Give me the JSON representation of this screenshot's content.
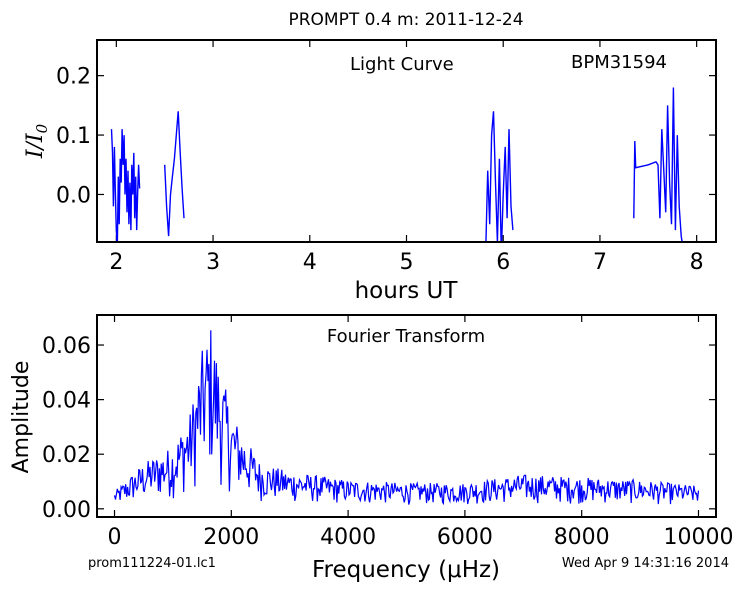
{
  "header": {
    "title": "PROMPT 0.4 m:  2011-12-24",
    "footer_left": "prom111224-01.lc1",
    "footer_right": "Wed Apr  9 14:31:16 2014"
  },
  "chart_data": [
    {
      "type": "line",
      "annotation_left": "Light Curve",
      "annotation_right": "BPM31594",
      "xlabel": "hours UT",
      "ylabel": "I/I0",
      "xlim": [
        1.8,
        8.2
      ],
      "ylim": [
        -0.08,
        0.26
      ],
      "xticks": [
        2,
        3,
        4,
        5,
        6,
        7,
        8
      ],
      "xtick_labels": [
        "2",
        "3",
        "4",
        "5",
        "6",
        "7",
        "8"
      ],
      "yticks": [
        0.0,
        0.1,
        0.2
      ],
      "ytick_labels": [
        "0.0",
        "0.1",
        "0.2"
      ],
      "line_color": "#0000ff",
      "series": [
        {
          "x": [
            1.95,
            1.96,
            1.97,
            1.98,
            1.99,
            2.0,
            2.01,
            2.02,
            2.03,
            2.04,
            2.05,
            2.06,
            2.07,
            2.08,
            2.09,
            2.1,
            2.11,
            2.12,
            2.13,
            2.14,
            2.15,
            2.16,
            2.17,
            2.18,
            2.19,
            2.2,
            2.21,
            2.22,
            2.23,
            2.24
          ],
          "y": [
            0.11,
            0.07,
            -0.02,
            0.08,
            0.0,
            -0.06,
            -0.09,
            0.03,
            -0.05,
            0.06,
            0.02,
            0.11,
            0.05,
            0.1,
            0.0,
            0.06,
            -0.03,
            0.04,
            -0.05,
            0.02,
            -0.06,
            0.05,
            0.0,
            0.07,
            -0.04,
            0.03,
            -0.06,
            0.0,
            0.05,
            0.01
          ]
        },
        {
          "x": [
            2.5,
            2.52,
            2.54,
            2.56,
            2.58,
            2.6,
            2.62,
            2.64,
            2.66,
            2.68,
            2.7
          ],
          "y": [
            0.05,
            -0.02,
            -0.07,
            0.0,
            0.03,
            0.06,
            0.1,
            0.14,
            0.07,
            0.01,
            -0.04
          ]
        },
        {
          "x": [
            5.82,
            5.84,
            5.86,
            5.88,
            5.9,
            5.92,
            5.94,
            5.96,
            5.98,
            6.0,
            6.02,
            6.04,
            6.06,
            6.08,
            6.1
          ],
          "y": [
            -0.09,
            0.04,
            -0.05,
            0.1,
            0.14,
            0.02,
            -0.08,
            0.06,
            -0.1,
            0.0,
            0.08,
            -0.04,
            0.11,
            -0.02,
            -0.06
          ]
        },
        {
          "x": [
            7.35,
            7.36,
            7.37,
            7.5,
            7.58,
            7.6,
            7.62,
            7.64,
            7.66,
            7.68,
            7.7,
            7.72,
            7.74,
            7.76,
            7.78,
            7.8,
            7.82,
            7.84,
            7.86
          ],
          "y": [
            -0.04,
            0.09,
            0.045,
            0.05,
            0.055,
            0.05,
            -0.04,
            0.11,
            0.04,
            -0.03,
            0.15,
            0.02,
            -0.05,
            0.18,
            -0.06,
            0.1,
            -0.02,
            -0.07,
            -0.09
          ]
        }
      ]
    },
    {
      "type": "line",
      "annotation": "Fourier Transform",
      "xlabel": "Frequency (μHz)",
      "ylabel": "Amplitude",
      "xlim": [
        -300,
        10300
      ],
      "ylim": [
        -0.003,
        0.071
      ],
      "xticks": [
        0,
        2000,
        4000,
        6000,
        8000,
        10000
      ],
      "xtick_labels": [
        "0",
        "2000",
        "4000",
        "6000",
        "8000",
        "10000"
      ],
      "yticks": [
        0.0,
        0.02,
        0.04,
        0.06
      ],
      "ytick_labels": [
        "0.00",
        "0.02",
        "0.04",
        "0.06"
      ],
      "line_color": "#0000ff",
      "envelope": {
        "x": [
          0,
          500,
          1000,
          1300,
          1500,
          1650,
          1800,
          2000,
          2200,
          2500,
          3000,
          4000,
          5000,
          6000,
          7000,
          8000,
          9000,
          10000
        ],
        "y": [
          0.006,
          0.016,
          0.022,
          0.034,
          0.055,
          0.065,
          0.05,
          0.034,
          0.026,
          0.016,
          0.013,
          0.01,
          0.009,
          0.009,
          0.012,
          0.011,
          0.01,
          0.008
        ]
      }
    }
  ]
}
